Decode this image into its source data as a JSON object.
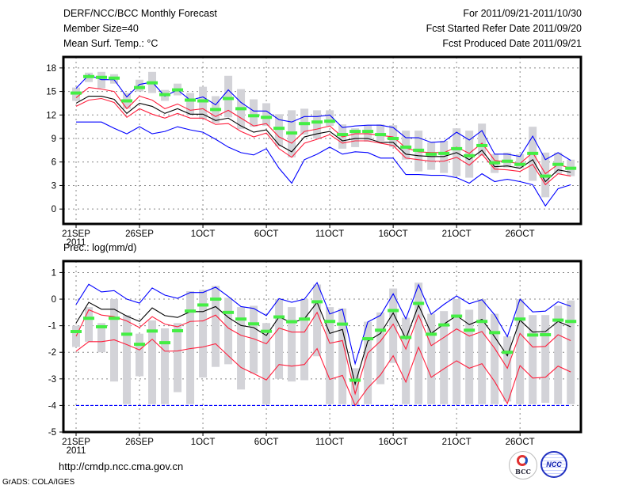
{
  "header": {
    "title": "DERF/NCC/BCC Monthly Forecast",
    "member_size": "Member Size=40",
    "variable": "Mean Surf. Temp.: °C",
    "period": "For 2011/09/21-2011/10/30",
    "fcst_started": "Fcst Started Refer Date 2011/09/20",
    "fcst_produced": "Fcst Produced Date 2011/09/21"
  },
  "footer": {
    "url": "http://cmdp.ncc.cma.gov.cn",
    "credit": "GrADS: COLA/IGES",
    "logo_bcc": "BCC",
    "logo_ncc": "NCC"
  },
  "colors": {
    "black": "#000000",
    "red": "#ff1e3c",
    "blue": "#0000ff",
    "green": "#44ee44",
    "gray": "#d3d3d8"
  },
  "chart_data": [
    {
      "type": "line",
      "title": "Mean Surf. Temp.: °C",
      "xlabel_year": "2011",
      "x_tick_labels": [
        "21SEP",
        "26SEP",
        "1OCT",
        "6OCT",
        "11OCT",
        "16OCT",
        "21OCT",
        "26OCT"
      ],
      "x_tick_days": [
        0,
        5,
        10,
        15,
        20,
        25,
        30,
        35
      ],
      "y_ticks": [
        0,
        3,
        6,
        9,
        12,
        15,
        18
      ],
      "ylim": [
        -1.9,
        19.4
      ],
      "xlim": [
        -1,
        39.8
      ],
      "grid": true,
      "range": [
        [
          13.8,
          15.5
        ],
        [
          16.2,
          17.4
        ],
        [
          15.4,
          17.5
        ],
        [
          16.0,
          17.2
        ],
        [
          12.8,
          14.8
        ],
        [
          15.0,
          16.5
        ],
        [
          14.8,
          17.5
        ],
        [
          13.8,
          15.2
        ],
        [
          14.5,
          16.0
        ],
        [
          12.0,
          14.8
        ],
        [
          11.5,
          15.6
        ],
        [
          11.0,
          14.4
        ],
        [
          11.7,
          17.0
        ],
        [
          10.2,
          15.3
        ],
        [
          10.5,
          14.0
        ],
        [
          10.6,
          13.5
        ],
        [
          8.0,
          12.1
        ],
        [
          6.6,
          12.6
        ],
        [
          9.5,
          12.8
        ],
        [
          9.0,
          12.6
        ],
        [
          10.6,
          12.6
        ],
        [
          7.7,
          10.8
        ],
        [
          7.9,
          10.3
        ],
        [
          8.6,
          10.7
        ],
        [
          8.7,
          10.8
        ],
        [
          7.9,
          10.7
        ],
        [
          6.3,
          10.0
        ],
        [
          4.8,
          10.0
        ],
        [
          5.0,
          8.5
        ],
        [
          4.6,
          8.7
        ],
        [
          4.2,
          10.3
        ],
        [
          4.0,
          10.0
        ],
        [
          6.8,
          10.9
        ],
        [
          4.6,
          7.0
        ],
        [
          5.3,
          7.2
        ],
        [
          5.2,
          7.0
        ],
        [
          3.6,
          10.5
        ],
        [
          1.5,
          7.2
        ],
        [
          4.5,
          7.2
        ],
        [
          4.2,
          6.3
        ]
      ],
      "series": [
        {
          "name": "blue_upper",
          "color": "blue",
          "values": [
            15.4,
            17.1,
            16.5,
            16.5,
            14.3,
            15.9,
            16.2,
            14.4,
            15.2,
            13.9,
            14.3,
            13.3,
            15.2,
            13.6,
            12.5,
            12.5,
            11.4,
            11.1,
            11.8,
            11.8,
            12.0,
            10.4,
            10.6,
            10.7,
            10.7,
            10.4,
            9.1,
            9.1,
            8.5,
            8.6,
            9.8,
            8.8,
            10.0,
            7.0,
            7.0,
            6.7,
            9.3,
            6.3,
            7.2,
            6.2
          ]
        },
        {
          "name": "red_upper",
          "color": "red",
          "values": [
            14.2,
            15.5,
            15.3,
            15.0,
            12.8,
            14.4,
            13.9,
            12.8,
            13.4,
            12.6,
            12.8,
            11.8,
            12.6,
            11.6,
            10.6,
            10.9,
            9.2,
            8.4,
            9.9,
            10.2,
            10.6,
            9.2,
            9.6,
            9.6,
            9.4,
            9.2,
            7.8,
            7.3,
            7.2,
            7.2,
            7.9,
            7.1,
            8.4,
            6.2,
            6.0,
            5.8,
            7.2,
            4.5,
            5.7,
            5.2
          ]
        },
        {
          "name": "mean",
          "color": "black",
          "values": [
            13.5,
            14.4,
            14.4,
            14.0,
            12.2,
            13.5,
            13.1,
            12.2,
            12.8,
            12.1,
            12.1,
            11.3,
            11.6,
            10.6,
            9.8,
            10.1,
            8.2,
            7.3,
            9.2,
            9.6,
            9.9,
            8.7,
            9.0,
            9.0,
            8.5,
            8.5,
            7.0,
            6.8,
            6.7,
            6.7,
            7.2,
            6.3,
            7.5,
            5.4,
            5.5,
            5.2,
            6.3,
            3.5,
            5.0,
            4.7
          ]
        },
        {
          "name": "red_lower",
          "color": "red",
          "values": [
            13.1,
            13.9,
            14.1,
            13.6,
            11.7,
            12.8,
            12.1,
            11.6,
            12.2,
            11.6,
            11.6,
            10.8,
            10.9,
            9.9,
            9.2,
            9.7,
            7.7,
            6.6,
            8.4,
            8.9,
            9.5,
            8.4,
            8.7,
            8.7,
            8.4,
            8.1,
            6.5,
            6.3,
            6.1,
            6.1,
            6.6,
            5.6,
            7.0,
            5.1,
            5.0,
            4.8,
            5.7,
            3.1,
            4.5,
            4.2
          ]
        },
        {
          "name": "blue_lower",
          "color": "blue",
          "values": [
            11.1,
            11.1,
            11.1,
            10.3,
            9.6,
            10.5,
            9.6,
            9.9,
            10.5,
            10.1,
            9.8,
            8.9,
            7.9,
            7.2,
            6.9,
            7.7,
            5.2,
            3.3,
            6.3,
            7.0,
            7.9,
            7.0,
            7.3,
            7.2,
            6.5,
            6.5,
            4.4,
            4.4,
            4.3,
            4.3,
            4.0,
            3.3,
            4.5,
            3.5,
            3.8,
            3.5,
            3.1,
            0.4,
            2.6,
            3.1
          ]
        }
      ],
      "markers": {
        "name": "green",
        "color": "green",
        "values": [
          14.8,
          16.9,
          16.8,
          16.7,
          13.8,
          15.5,
          16.1,
          14.6,
          15.2,
          13.9,
          13.8,
          12.7,
          14.1,
          12.8,
          11.9,
          11.7,
          10.3,
          9.7,
          10.9,
          11.1,
          11.2,
          9.5,
          9.9,
          9.9,
          9.5,
          9.0,
          7.9,
          7.5,
          7.0,
          7.1,
          7.7,
          6.8,
          8.1,
          5.9,
          6.1,
          5.7,
          7.1,
          4.2,
          5.7,
          5.2
        ]
      }
    },
    {
      "type": "line",
      "title": "Prec.: log(mm/d)",
      "xlabel_year": "2011",
      "x_tick_labels": [
        "21SEP",
        "26SEP",
        "1OCT",
        "6OCT",
        "11OCT",
        "16OCT",
        "21OCT",
        "26OCT"
      ],
      "x_tick_days": [
        0,
        5,
        10,
        15,
        20,
        25,
        30,
        35
      ],
      "y_ticks": [
        1,
        0,
        -1,
        -2,
        -3,
        -4,
        -5
      ],
      "ylim": [
        -5,
        1.43
      ],
      "xlim": [
        -1,
        39.8
      ],
      "grid": true,
      "range": [
        [
          -1.8,
          -1.0
        ],
        [
          -1.6,
          -0.3
        ],
        [
          -2.0,
          -0.9
        ],
        [
          -3.1,
          0
        ],
        [
          -3.95,
          -0.6
        ],
        [
          -2.9,
          -1.3
        ],
        [
          -3.95,
          -0.8
        ],
        [
          -3.95,
          -1.1
        ],
        [
          -3.5,
          -0.9
        ],
        [
          -3.95,
          0.3
        ],
        [
          -2.95,
          0.35
        ],
        [
          -2.55,
          0.5
        ],
        [
          -2.45,
          0.05
        ],
        [
          -3.4,
          -0.3
        ],
        [
          -2.8,
          -0.25
        ],
        [
          -3.95,
          -0.9
        ],
        [
          -3.0,
          0
        ],
        [
          -3.1,
          -0.3
        ],
        [
          -3.05,
          0
        ],
        [
          -2.15,
          0.55
        ],
        [
          -3.95,
          -0.3
        ],
        [
          -3.95,
          -0.35
        ],
        [
          -4.0,
          -2.6
        ],
        [
          -3.95,
          -0.85
        ],
        [
          -3.2,
          -0.5
        ],
        [
          -2.4,
          0.4
        ],
        [
          -3.95,
          -0.7
        ],
        [
          -3.95,
          0.62
        ],
        [
          -3.95,
          -0.55
        ],
        [
          -3.95,
          -0.45
        ],
        [
          -3.95,
          0
        ],
        [
          -3.95,
          -0.4
        ],
        [
          -3.95,
          0
        ],
        [
          -3.95,
          -0.55
        ],
        [
          -3.85,
          -1.4
        ],
        [
          -3.95,
          0
        ],
        [
          -3.95,
          -0.6
        ],
        [
          -3.9,
          -0.6
        ],
        [
          -3.95,
          -0.25
        ],
        [
          -3.95,
          -0.05
        ]
      ],
      "series": [
        {
          "name": "blue_upper",
          "color": "blue",
          "values": [
            -0.2,
            0.56,
            0.27,
            0.32,
            0,
            -0.15,
            0.42,
            0.15,
            0.03,
            0.25,
            0.25,
            0.45,
            0.1,
            -0.28,
            -0.35,
            -0.62,
            0.02,
            -0.12,
            0,
            0.62,
            -0.56,
            -0.38,
            -2.43,
            -0.86,
            -0.61,
            0.2,
            -0.74,
            0.54,
            -0.57,
            -0.2,
            0.12,
            -0.17,
            -0.02,
            -0.59,
            -1.41,
            0,
            -0.48,
            -0.45,
            -0.1,
            -0.27
          ]
        },
        {
          "name": "mean",
          "color": "black",
          "values": [
            -0.9,
            -0.12,
            -0.38,
            -0.38,
            -0.64,
            -0.84,
            -0.33,
            -0.62,
            -0.69,
            -0.47,
            -0.47,
            -0.28,
            -0.69,
            -0.99,
            -1.07,
            -1.37,
            -0.67,
            -0.89,
            -0.74,
            -0.12,
            -1.29,
            -1.14,
            -3.2,
            -1.58,
            -1.29,
            -0.52,
            -1.49,
            -0.23,
            -1.29,
            -0.94,
            -0.62,
            -0.96,
            -0.76,
            -1.42,
            -2.13,
            -0.79,
            -1.24,
            -1.22,
            -0.84,
            -1.04
          ]
        },
        {
          "name": "red_upper",
          "color": "red",
          "values": [
            -1.4,
            -0.4,
            -0.6,
            -0.66,
            -0.82,
            -1.07,
            -0.66,
            -0.94,
            -1.04,
            -0.84,
            -0.82,
            -0.6,
            -1.09,
            -1.36,
            -1.49,
            -1.68,
            -1.09,
            -1.24,
            -1.24,
            -0.5,
            -1.66,
            -1.56,
            -3.56,
            -2.03,
            -1.58,
            -0.94,
            -1.88,
            -0.6,
            -1.75,
            -1.44,
            -1.12,
            -1.39,
            -1.22,
            -1.85,
            -2.6,
            -1.29,
            -1.8,
            -1.78,
            -1.34,
            -1.56
          ]
        },
        {
          "name": "red_lower",
          "color": "red",
          "values": [
            -1.96,
            -1.6,
            -1.6,
            -1.53,
            -1.71,
            -1.91,
            -1.51,
            -1.96,
            -1.95,
            -1.86,
            -1.8,
            -1.68,
            -2.13,
            -2.57,
            -2.8,
            -3.04,
            -2.46,
            -2.52,
            -2.46,
            -1.86,
            -3.02,
            -2.87,
            -4.0,
            -3.34,
            -2.85,
            -2.13,
            -3.12,
            -1.81,
            -2.94,
            -2.62,
            -2.32,
            -2.6,
            -2.43,
            -3.1,
            -3.93,
            -2.5,
            -2.97,
            -2.94,
            -2.52,
            -2.74
          ]
        },
        {
          "name": "blue_lower",
          "color": "blue",
          "dashed": true,
          "values": [
            -4,
            -4,
            -4,
            -4,
            -4,
            -4,
            -4,
            -4,
            -4,
            -4,
            -4,
            -4,
            -4,
            -4,
            -4,
            -4,
            -4,
            -4,
            -4,
            -4,
            -4,
            -4,
            -4,
            -4,
            -4,
            -4,
            -4,
            -4,
            -4,
            -4,
            -4,
            -4,
            -4,
            -4,
            -4,
            -4,
            -4,
            -4,
            -4,
            -4
          ]
        }
      ],
      "markers": {
        "name": "green",
        "color": "green",
        "values": [
          -1.22,
          -0.72,
          -1.04,
          -0.72,
          -1.32,
          -1.7,
          -1.2,
          -1.64,
          -1.19,
          -0.45,
          -0.22,
          0,
          -0.5,
          -0.75,
          -0.93,
          -1.21,
          -0.67,
          -0.85,
          -0.75,
          -0.1,
          -0.84,
          -0.94,
          -3.05,
          -1.49,
          -1.17,
          -0.43,
          -1.44,
          -0.16,
          -1.32,
          -0.97,
          -0.64,
          -1.17,
          -0.84,
          -1.26,
          -2.0,
          -0.75,
          -1.35,
          -1.34,
          -0.79,
          -0.84
        ]
      }
    }
  ]
}
